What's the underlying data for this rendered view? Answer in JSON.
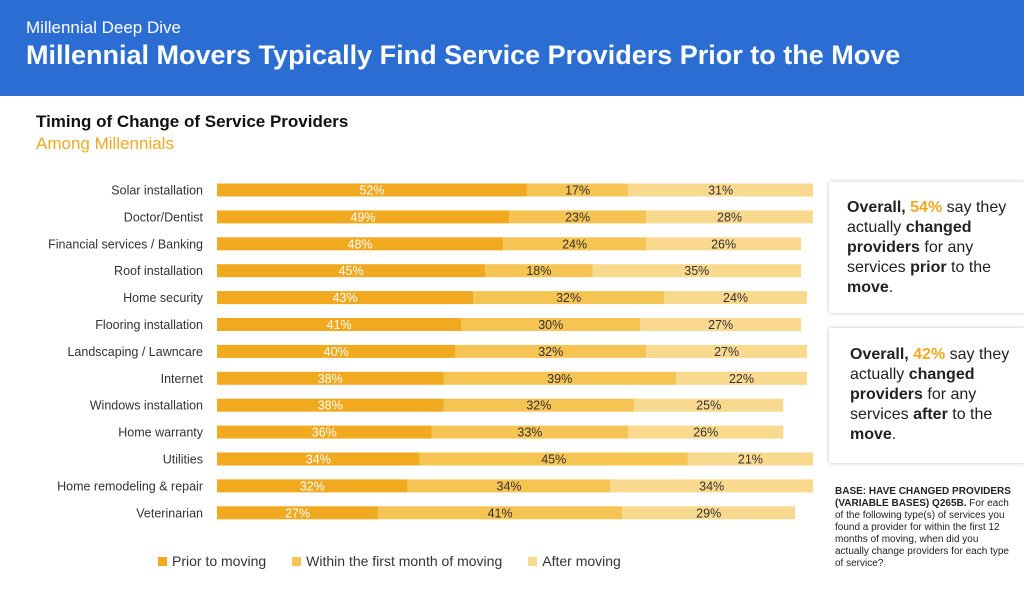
{
  "header": {
    "kicker": "Millennial Deep Dive",
    "title": "Millennial Movers Typically Find Service Providers Prior to the Move"
  },
  "colors": {
    "header_bg": "#2b6dd3",
    "prior": "#f1a91f",
    "first_month": "#f6c453",
    "after": "#f9d98e",
    "accent": "#f1a91f"
  },
  "chart_data": {
    "type": "bar",
    "orientation": "horizontal",
    "stacked": "100%",
    "title": "Timing of Change of Service Providers",
    "subtitle": "Among Millennials",
    "categories": [
      "Solar installation",
      "Doctor/Dentist",
      "Financial services / Banking",
      "Roof installation",
      "Home security",
      "Flooring installation",
      "Landscaping / Lawncare",
      "Internet",
      "Windows installation",
      "Home warranty",
      "Utilities",
      "Home remodeling & repair",
      "Veterinarian"
    ],
    "series": [
      {
        "name": "Prior to moving",
        "values": [
          52,
          49,
          48,
          45,
          43,
          41,
          40,
          38,
          38,
          36,
          34,
          32,
          27
        ]
      },
      {
        "name": "Within the first month of moving",
        "values": [
          17,
          23,
          24,
          18,
          32,
          30,
          32,
          39,
          32,
          33,
          45,
          34,
          41
        ]
      },
      {
        "name": "After moving",
        "values": [
          31,
          28,
          26,
          35,
          24,
          27,
          27,
          22,
          25,
          26,
          21,
          34,
          29
        ]
      }
    ],
    "value_suffix": "%",
    "legend_position": "bottom",
    "grid": false
  },
  "callouts": [
    {
      "prefix": "Overall, ",
      "pct": "54%",
      "t1": " say they actually ",
      "b1": "changed providers",
      "t2": " for any services ",
      "b2": "prior",
      "t3": " to the ",
      "b3": "move",
      "t4": "."
    },
    {
      "prefix": "Overall, ",
      "pct": "42%",
      "t1": " say they actually ",
      "b1": "changed providers",
      "t2": " for any services ",
      "b2": "after",
      "t3": " to the ",
      "b3": "move",
      "t4": "."
    }
  ],
  "base_note": {
    "bold": "BASE: HAVE CHANGED PROVIDERS (VARIABLE BASES) Q265B.",
    "text": " For each of the following type(s) of services you found a provider for within the first 12 months of moving, when did you actually change providers for each type of service?"
  }
}
